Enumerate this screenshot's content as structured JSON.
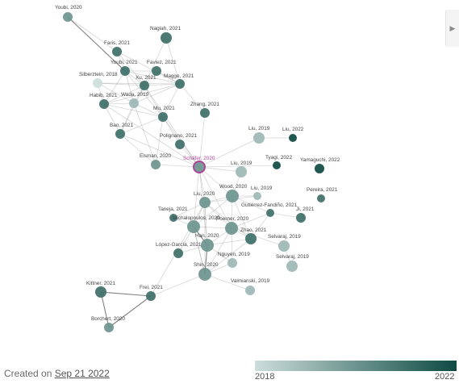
{
  "graph": {
    "colors": {
      "old": "#ccdedb",
      "new": "#0e4a43",
      "highlight_ring": "#b0449a"
    },
    "year_range": [
      2018,
      2022
    ],
    "nodes": [
      {
        "id": "youbi2020",
        "label": "Youbi, 2020",
        "year": 2020
      },
      {
        "id": "naglah2021",
        "label": "Naglah, 2021",
        "year": 2021
      },
      {
        "id": "faris2021",
        "label": "Faris, 2021",
        "year": 2021
      },
      {
        "id": "youbi2021",
        "label": "Youbi, 2021",
        "year": 2021
      },
      {
        "id": "faviez2021",
        "label": "Faviez, 2021",
        "year": 2021
      },
      {
        "id": "silberztein2018",
        "label": "Silberztein, 2018",
        "year": 2018
      },
      {
        "id": "xu2021",
        "label": "Xu, 2021",
        "year": 2021
      },
      {
        "id": "magge2021",
        "label": "Magge, 2021",
        "year": 2021
      },
      {
        "id": "habib2021",
        "label": "Habib, 2021",
        "year": 2021
      },
      {
        "id": "wada2019",
        "label": "Wada, 2019",
        "year": 2019
      },
      {
        "id": "mu2021",
        "label": "Mu, 2021",
        "year": 2021
      },
      {
        "id": "zhang2021",
        "label": "Zhang, 2021",
        "year": 2021
      },
      {
        "id": "bao2021",
        "label": "Bao, 2021",
        "year": 2021
      },
      {
        "id": "polignano2021",
        "label": "Polignano, 2021",
        "year": 2021
      },
      {
        "id": "liu2019a",
        "label": "Liu, 2019",
        "year": 2019
      },
      {
        "id": "liu2022",
        "label": "Liu, 2022",
        "year": 2022
      },
      {
        "id": "eisman2020",
        "label": "Eisman, 2020",
        "year": 2020
      },
      {
        "id": "schafer2020",
        "label": "Schäfer, 2020",
        "year": 2020,
        "highlight": true
      },
      {
        "id": "tyagi2022",
        "label": "Tyagi, 2022",
        "year": 2022
      },
      {
        "id": "yamaguchi2022",
        "label": "Yamaguchi, 2022",
        "year": 2022
      },
      {
        "id": "liu2019b",
        "label": "Liu, 2019",
        "year": 2019
      },
      {
        "id": "liu2019c",
        "label": "Liu, 2019",
        "year": 2019
      },
      {
        "id": "wood2020",
        "label": "Wood, 2020",
        "year": 2020
      },
      {
        "id": "liu2020",
        "label": "Liu, 2020",
        "year": 2020
      },
      {
        "id": "pereira2021",
        "label": "Pereira, 2021",
        "year": 2021
      },
      {
        "id": "gutierrez2020",
        "label": "Gutiérrez-Fandiño, 2021",
        "year": 2021
      },
      {
        "id": "li2021",
        "label": "Ji, 2021",
        "year": 2021
      },
      {
        "id": "taneja2021",
        "label": "Taneja, 2021",
        "year": 2021
      },
      {
        "id": "michalopoulos2020",
        "label": "Michalopoulos, 2020",
        "year": 2020
      },
      {
        "id": "poerner2020",
        "label": "Poerner, 2020",
        "year": 2020
      },
      {
        "id": "zhao2021",
        "label": "Zhao, 2021",
        "year": 2021
      },
      {
        "id": "han2020",
        "label": "Han, 2020",
        "year": 2020
      },
      {
        "id": "lopezgarcia2021",
        "label": "López-García, 2021",
        "year": 2021
      },
      {
        "id": "selvaraj2019a",
        "label": "Selvaraj, 2019",
        "year": 2019
      },
      {
        "id": "selvaraj2019b",
        "label": "Selvaraj, 2019",
        "year": 2019
      },
      {
        "id": "nguyen2019",
        "label": "Nguyen, 2019",
        "year": 2019
      },
      {
        "id": "shin2020",
        "label": "Shin, 2020",
        "year": 2020
      },
      {
        "id": "valmianski2019",
        "label": "Valmianski, 2019",
        "year": 2019
      },
      {
        "id": "kittner2021",
        "label": "Kittner, 2021",
        "year": 2021
      },
      {
        "id": "frei2021",
        "label": "Frei, 2021",
        "year": 2021
      },
      {
        "id": "borchert2020",
        "label": "Borchert, 2020",
        "year": 2020
      }
    ],
    "edges": [
      [
        "youbi2020",
        "youbi2021",
        1
      ],
      [
        "youbi2020",
        "faris2021",
        0
      ],
      [
        "faris2021",
        "youbi2021",
        0
      ],
      [
        "faris2021",
        "xu2021",
        0
      ],
      [
        "faris2021",
        "magge2021",
        0
      ],
      [
        "naglah2021",
        "magge2021",
        0
      ],
      [
        "naglah2021",
        "xu2021",
        0
      ],
      [
        "youbi2021",
        "faviez2021",
        0
      ],
      [
        "youbi2021",
        "xu2021",
        0
      ],
      [
        "youbi2021",
        "magge2021",
        0
      ],
      [
        "youbi2021",
        "habib2021",
        0
      ],
      [
        "youbi2021",
        "wada2019",
        0
      ],
      [
        "youbi2021",
        "mu2021",
        0
      ],
      [
        "faviez2021",
        "magge2021",
        0
      ],
      [
        "faviez2021",
        "xu2021",
        0
      ],
      [
        "silberztein2018",
        "xu2021",
        0
      ],
      [
        "silberztein2018",
        "habib2021",
        0
      ],
      [
        "silberztein2018",
        "wada2019",
        0
      ],
      [
        "silberztein2018",
        "magge2021",
        0
      ],
      [
        "xu2021",
        "magge2021",
        0
      ],
      [
        "xu2021",
        "habib2021",
        0
      ],
      [
        "xu2021",
        "wada2019",
        0
      ],
      [
        "xu2021",
        "mu2021",
        0
      ],
      [
        "xu2021",
        "bao2021",
        0
      ],
      [
        "magge2021",
        "mu2021",
        0
      ],
      [
        "magge2021",
        "wada2019",
        0
      ],
      [
        "magge2021",
        "zhang2021",
        0
      ],
      [
        "magge2021",
        "habib2021",
        0
      ],
      [
        "habib2021",
        "wada2019",
        0
      ],
      [
        "habib2021",
        "mu2021",
        0
      ],
      [
        "habib2021",
        "bao2021",
        0
      ],
      [
        "wada2019",
        "mu2021",
        0
      ],
      [
        "wada2019",
        "bao2021",
        0
      ],
      [
        "wada2019",
        "eisman2020",
        0
      ],
      [
        "mu2021",
        "polignano2021",
        0
      ],
      [
        "mu2021",
        "schafer2020",
        0
      ],
      [
        "mu2021",
        "eisman2020",
        0
      ],
      [
        "mu2021",
        "bao2021",
        0
      ],
      [
        "bao2021",
        "schafer2020",
        0
      ],
      [
        "bao2021",
        "eisman2020",
        0
      ],
      [
        "zhang2021",
        "schafer2020",
        0
      ],
      [
        "polignano2021",
        "schafer2020",
        0
      ],
      [
        "eisman2020",
        "schafer2020",
        0
      ],
      [
        "habib2021",
        "schafer2020",
        0
      ],
      [
        "xu2021",
        "schafer2020",
        0
      ],
      [
        "schafer2020",
        "liu2019a",
        0
      ],
      [
        "schafer2020",
        "liu2019b",
        0
      ],
      [
        "schafer2020",
        "wood2020",
        0
      ],
      [
        "schafer2020",
        "liu2020",
        0
      ],
      [
        "schafer2020",
        "tyagi2022",
        0
      ],
      [
        "schafer2020",
        "michalopoulos2020",
        0
      ],
      [
        "schafer2020",
        "poerner2020",
        0
      ],
      [
        "schafer2020",
        "han2020",
        0
      ],
      [
        "liu2019a",
        "liu2022",
        0
      ],
      [
        "liu2019b",
        "wood2020",
        0
      ],
      [
        "wood2020",
        "liu2019c",
        0
      ],
      [
        "wood2020",
        "liu2020",
        0
      ],
      [
        "wood2020",
        "gutierrez2020",
        0
      ],
      [
        "wood2020",
        "poerner2020",
        0
      ],
      [
        "wood2020",
        "zhao2021",
        0
      ],
      [
        "wood2020",
        "michalopoulos2020",
        0
      ],
      [
        "liu2020",
        "michalopoulos2020",
        0
      ],
      [
        "liu2020",
        "taneja2021",
        0
      ],
      [
        "liu2020",
        "poerner2020",
        0
      ],
      [
        "liu2020",
        "han2020",
        0
      ],
      [
        "liu2020",
        "shin2020",
        0
      ],
      [
        "liu2020",
        "zhao2021",
        0
      ],
      [
        "gutierrez2020",
        "li2021",
        0
      ],
      [
        "gutierrez2020",
        "zhao2021",
        0
      ],
      [
        "gutierrez2020",
        "poerner2020",
        0
      ],
      [
        "taneja2021",
        "michalopoulos2020",
        0
      ],
      [
        "michalopoulos2020",
        "han2020",
        1
      ],
      [
        "michalopoulos2020",
        "poerner2020",
        0
      ],
      [
        "michalopoulos2020",
        "lopezgarcia2021",
        0
      ],
      [
        "michalopoulos2020",
        "shin2020",
        0
      ],
      [
        "poerner2020",
        "han2020",
        0
      ],
      [
        "poerner2020",
        "zhao2021",
        0
      ],
      [
        "poerner2020",
        "shin2020",
        0
      ],
      [
        "poerner2020",
        "nguyen2019",
        0
      ],
      [
        "han2020",
        "shin2020",
        1
      ],
      [
        "han2020",
        "lopezgarcia2021",
        0
      ],
      [
        "han2020",
        "nguyen2019",
        0
      ],
      [
        "zhao2021",
        "shin2020",
        0
      ],
      [
        "zhao2021",
        "han2020",
        0
      ],
      [
        "selvaraj2019a",
        "selvaraj2019b",
        0
      ],
      [
        "shin2020",
        "nguyen2019",
        0
      ],
      [
        "shin2020",
        "valmianski2019",
        0
      ],
      [
        "shin2020",
        "frei2021",
        0
      ],
      [
        "kittner2021",
        "frei2021",
        1
      ],
      [
        "kittner2021",
        "borchert2020",
        1
      ],
      [
        "frei2021",
        "borchert2020",
        1
      ],
      [
        "liu2020",
        "frei2021",
        0
      ],
      [
        "michalopoulos2020",
        "shin2020",
        0
      ],
      [
        "poerner2020",
        "selvaraj2019a",
        0
      ],
      [
        "liu2020",
        "liu2019c",
        0
      ]
    ]
  },
  "footer": {
    "created_prefix": "Created on",
    "created_date": "Sep 21 2022"
  },
  "colorbar": {
    "min_label": "2018",
    "max_label": "2022"
  },
  "side_panel": {
    "icon": "chevron-right-icon"
  }
}
